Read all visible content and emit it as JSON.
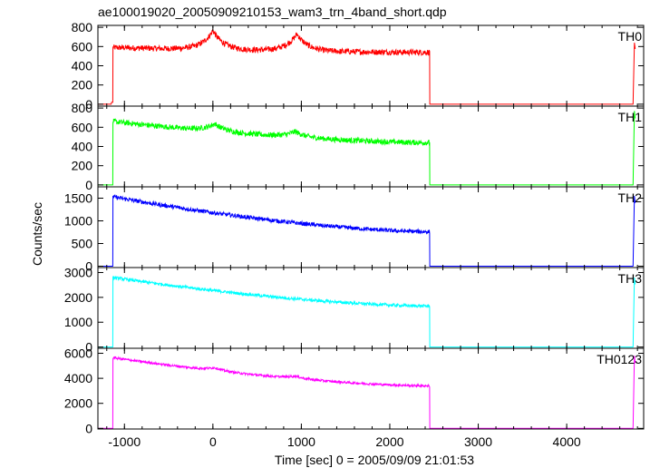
{
  "chart_data": {
    "type": "line",
    "title": "ae100019020_20050909210153_wam3_trn_4band_short.qdp",
    "xlabel": "Time [sec] 0 = 2005/09/09 21:01:53",
    "ylabel": "Counts/sec",
    "xlim": [
      -1300,
      4870
    ],
    "x_ticks": [
      -1000,
      0,
      1000,
      2000,
      3000,
      4000
    ],
    "grid": false,
    "panels": [
      {
        "name": "TH0",
        "color": "#ff0000",
        "ylim": [
          -20,
          820
        ],
        "y_ticks": [
          0,
          200,
          400,
          600,
          800
        ],
        "data_start": -1130,
        "data_end": 2450,
        "start_value": 590,
        "end_value": 540,
        "noise": 30,
        "bumps": [
          [
            0,
            200
          ],
          [
            950,
            180
          ]
        ],
        "baseline": 0,
        "pre_value": 20,
        "tail_start": 4750,
        "tail_value": 640
      },
      {
        "name": "TH1",
        "color": "#00ff00",
        "ylim": [
          -20,
          820
        ],
        "y_ticks": [
          0,
          200,
          400,
          600,
          800
        ],
        "data_start": -1130,
        "data_end": 2450,
        "start_value": 660,
        "end_value": 440,
        "noise": 28,
        "bumps": [
          [
            20,
            80
          ],
          [
            930,
            60
          ]
        ],
        "baseline": 0,
        "pre_value": 0,
        "tail_start": 4750,
        "tail_value": 770
      },
      {
        "name": "TH2",
        "color": "#0000ff",
        "ylim": [
          -30,
          1750
        ],
        "y_ticks": [
          0,
          500,
          1000,
          1500
        ],
        "data_start": -1130,
        "data_end": 2450,
        "start_value": 1530,
        "end_value": 760,
        "noise": 45,
        "bumps": [],
        "baseline": 0,
        "pre_value": 0,
        "tail_start": 4750,
        "tail_value": 1550
      },
      {
        "name": "TH3",
        "color": "#00ffff",
        "ylim": [
          -50,
          3200
        ],
        "y_ticks": [
          0,
          1000,
          2000,
          3000
        ],
        "data_start": -1130,
        "data_end": 2450,
        "start_value": 2800,
        "end_value": 1650,
        "noise": 60,
        "bumps": [],
        "baseline": 0,
        "pre_value": 0,
        "tail_start": 4750,
        "tail_value": 2800
      },
      {
        "name": "TH0123",
        "color": "#ff00ff",
        "ylim": [
          -50,
          6400
        ],
        "y_ticks": [
          0,
          2000,
          4000,
          6000
        ],
        "data_start": -1130,
        "data_end": 2450,
        "start_value": 5650,
        "end_value": 3400,
        "noise": 90,
        "bumps": [
          [
            20,
            250
          ],
          [
            930,
            220
          ]
        ],
        "baseline": 0,
        "pre_value": 0,
        "tail_start": 4750,
        "tail_value": 5800
      }
    ]
  }
}
